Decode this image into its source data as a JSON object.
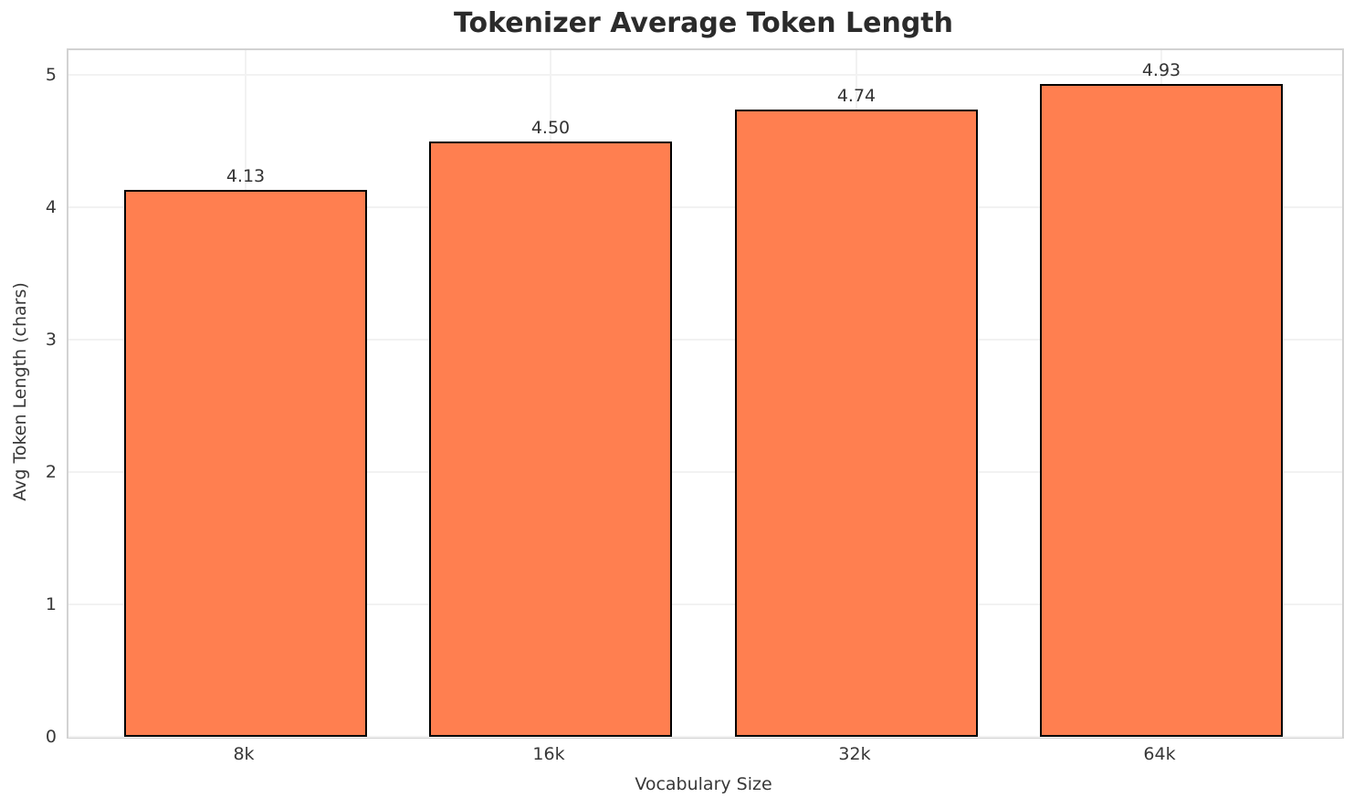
{
  "chart_data": {
    "type": "bar",
    "title": "Tokenizer Average Token Length",
    "xlabel": "Vocabulary Size",
    "ylabel": "Avg Token Length (chars)",
    "categories": [
      "8k",
      "16k",
      "32k",
      "64k"
    ],
    "values": [
      4.13,
      4.5,
      4.74,
      4.93
    ],
    "value_labels": [
      "4.13",
      "4.50",
      "4.74",
      "4.93"
    ],
    "yticks": [
      0,
      1,
      2,
      3,
      4,
      5
    ],
    "ylim": [
      0,
      5.19
    ],
    "grid": true,
    "legend": false,
    "bar_color": "#FF7F50",
    "bar_edge_color": "#000000",
    "grid_color": "#f2f2f2",
    "spine_color": "#d2d2d2",
    "text_color": "#383838",
    "title_color": "#2b2b2b"
  }
}
